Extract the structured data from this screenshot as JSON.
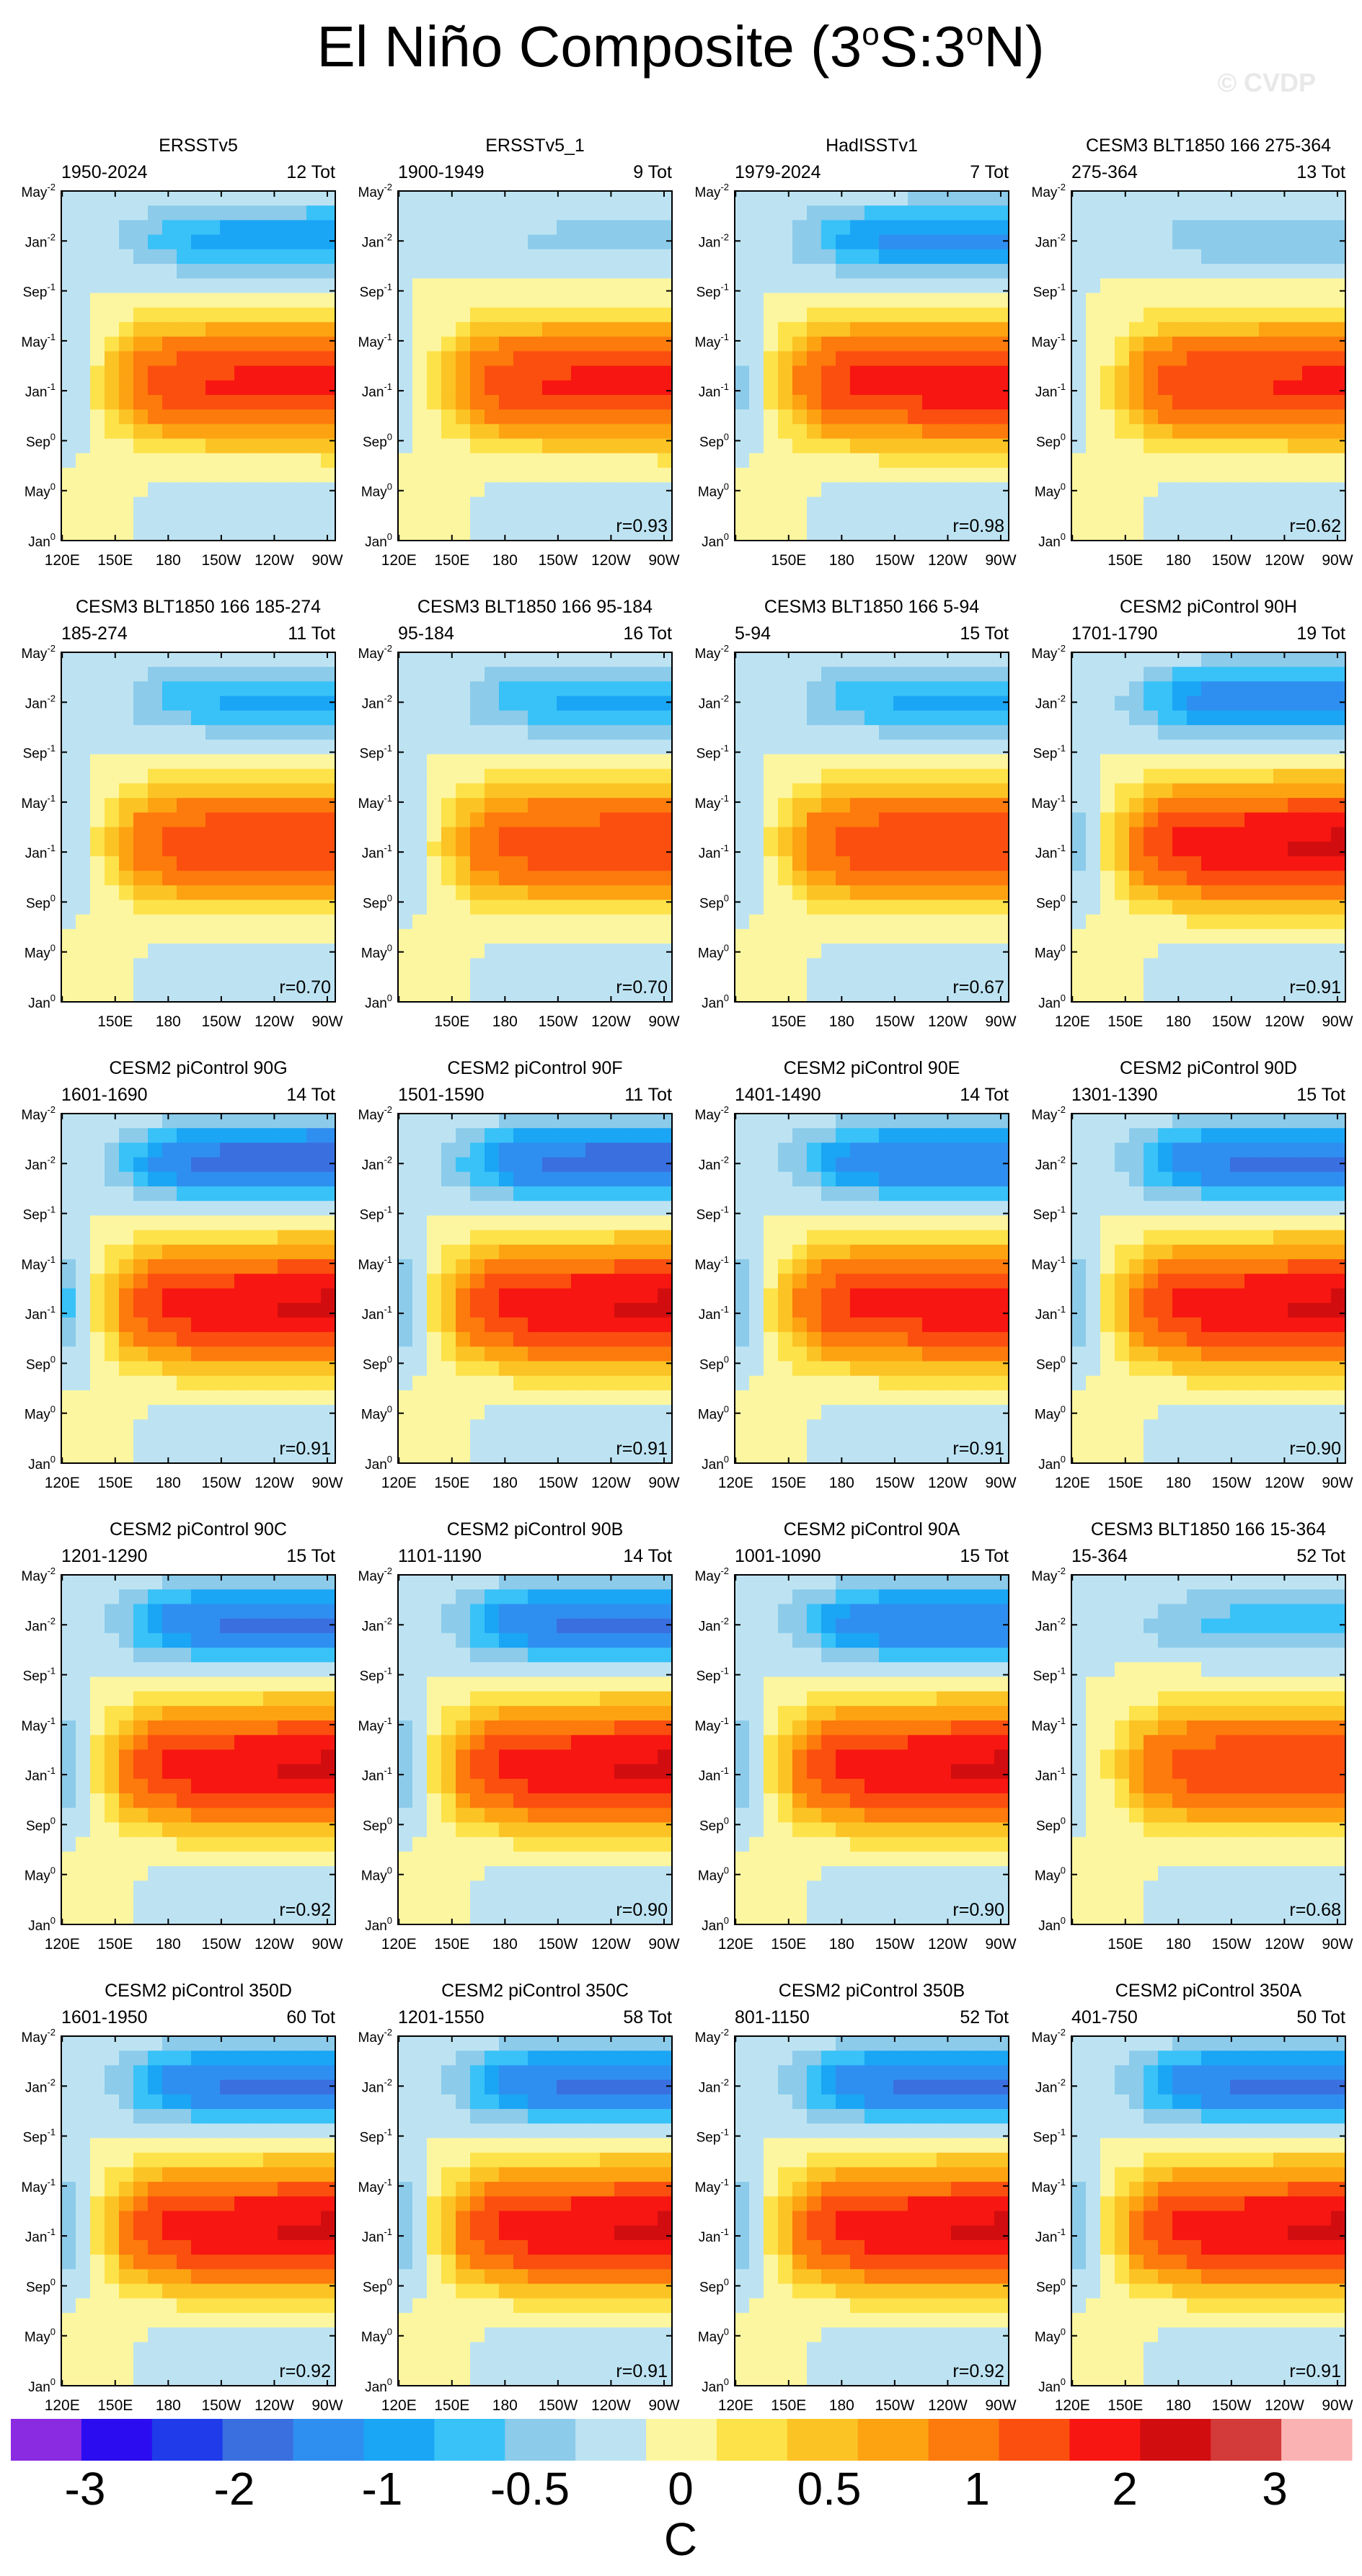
{
  "figure": {
    "title_main": "El Niño Composite (3",
    "title_s": "S:3",
    "title_n": "N)",
    "title_deg": "o",
    "watermark": "© CVDP"
  },
  "axes": {
    "y_ticks": [
      {
        "base": "May",
        "sup": "-2"
      },
      {
        "base": "Jan",
        "sup": "-2"
      },
      {
        "base": "Sep",
        "sup": "-1"
      },
      {
        "base": "May",
        "sup": "-1"
      },
      {
        "base": "Jan",
        "sup": "-1"
      },
      {
        "base": "Sep",
        "sup": "0"
      },
      {
        "base": "May",
        "sup": "0"
      },
      {
        "base": "Jan",
        "sup": "0"
      }
    ],
    "x_ticks": [
      "120E",
      "150E",
      "180",
      "150W",
      "120W",
      "90W"
    ]
  },
  "colorbar": {
    "colors": [
      "#8a2be2",
      "#2b0cf0",
      "#1f3bea",
      "#3a6fe0",
      "#2f8ff0",
      "#1aa6f5",
      "#38c2f8",
      "#8ccbea",
      "#bde3f2",
      "#fdf6a0",
      "#fde24a",
      "#fcc324",
      "#fda312",
      "#fd7a0c",
      "#fb4f0f",
      "#f71611",
      "#d20d10",
      "#d33a3a",
      "#fbb2b2"
    ],
    "labels": [
      "-3",
      "-2",
      "-1",
      "-0.5",
      "0",
      "0.5",
      "1",
      "2",
      "3"
    ],
    "unit": "C"
  },
  "chart_data": {
    "type": "heatmap",
    "title": "El Niño Composite (3°S:3°N)",
    "color_levels": [
      -3,
      -2.5,
      -2,
      -1.5,
      -1,
      -0.75,
      -0.5,
      -0.25,
      0,
      0.25,
      0.5,
      0.75,
      1,
      1.5,
      2,
      2.5,
      3
    ],
    "panels": [
      {
        "name": "ERSSTv5",
        "years": "1950-2024",
        "count": "12 Tot",
        "r": "",
        "xticks": true,
        "peak_warm": 2.2,
        "peak_cold": -0.9
      },
      {
        "name": "ERSSTv5_1",
        "years": "1900-1949",
        "count": "9 Tot",
        "r": "r=0.93",
        "xticks": true,
        "peak_warm": 2.2,
        "peak_cold": -0.3
      },
      {
        "name": "HadISSTv1",
        "years": "1979-2024",
        "count": "7 Tot",
        "r": "r=0.98",
        "xticks": false,
        "peak_warm": 2.4,
        "peak_cold": -1.1
      },
      {
        "name": "CESM3 BLT1850 166 275-364",
        "years": "275-364",
        "count": "13 Tot",
        "r": "r=0.62",
        "xticks": false,
        "peak_warm": 2.1,
        "peak_cold": -0.4
      },
      {
        "name": "CESM3 BLT1850 166 185-274",
        "years": "185-274",
        "count": "11 Tot",
        "r": "r=0.70",
        "xticks": false,
        "peak_warm": 2.0,
        "peak_cold": -0.8
      },
      {
        "name": "CESM3 BLT1850 166 95-184",
        "years": "95-184",
        "count": "16 Tot",
        "r": "r=0.70",
        "xticks": false,
        "peak_warm": 1.9,
        "peak_cold": -0.8
      },
      {
        "name": "CESM3 BLT1850 166 5-94",
        "years": "5-94",
        "count": "15 Tot",
        "r": "r=0.67",
        "xticks": false,
        "peak_warm": 2.0,
        "peak_cold": -0.8
      },
      {
        "name": "CESM2 piControl 90H",
        "years": "1701-1790",
        "count": "19 Tot",
        "r": "r=0.91",
        "xticks": true,
        "peak_warm": 2.6,
        "peak_cold": -1.3
      },
      {
        "name": "CESM2 piControl 90G",
        "years": "1601-1690",
        "count": "14 Tot",
        "r": "r=0.91",
        "xticks": true,
        "peak_warm": 2.6,
        "peak_cold": -1.8
      },
      {
        "name": "CESM2 piControl 90F",
        "years": "1501-1590",
        "count": "11 Tot",
        "r": "r=0.91",
        "xticks": true,
        "peak_warm": 2.6,
        "peak_cold": -1.7
      },
      {
        "name": "CESM2 piControl 90E",
        "years": "1401-1490",
        "count": "14 Tot",
        "r": "r=0.91",
        "xticks": true,
        "peak_warm": 2.4,
        "peak_cold": -1.5
      },
      {
        "name": "CESM2 piControl 90D",
        "years": "1301-1390",
        "count": "15 Tot",
        "r": "r=0.90",
        "xticks": true,
        "peak_warm": 2.6,
        "peak_cold": -1.6
      },
      {
        "name": "CESM2 piControl 90C",
        "years": "1201-1290",
        "count": "15 Tot",
        "r": "r=0.92",
        "xticks": true,
        "peak_warm": 2.6,
        "peak_cold": -1.6
      },
      {
        "name": "CESM2 piControl 90B",
        "years": "1101-1190",
        "count": "14 Tot",
        "r": "r=0.90",
        "xticks": true,
        "peak_warm": 2.6,
        "peak_cold": -1.6
      },
      {
        "name": "CESM2 piControl 90A",
        "years": "1001-1090",
        "count": "15 Tot",
        "r": "r=0.90",
        "xticks": true,
        "peak_warm": 2.6,
        "peak_cold": -1.5
      },
      {
        "name": "CESM3 BLT1850 166 15-364",
        "years": "15-364",
        "count": "52 Tot",
        "r": "r=0.68",
        "xticks": false,
        "peak_warm": 2.0,
        "peak_cold": -0.6
      },
      {
        "name": "CESM2 piControl 350D",
        "years": "1601-1950",
        "count": "60 Tot",
        "r": "r=0.92",
        "xticks": true,
        "peak_warm": 2.6,
        "peak_cold": -1.6
      },
      {
        "name": "CESM2 piControl 350C",
        "years": "1201-1550",
        "count": "58 Tot",
        "r": "r=0.91",
        "xticks": true,
        "peak_warm": 2.6,
        "peak_cold": -1.6
      },
      {
        "name": "CESM2 piControl 350B",
        "years": "801-1150",
        "count": "52 Tot",
        "r": "r=0.92",
        "xticks": true,
        "peak_warm": 2.6,
        "peak_cold": -1.6
      },
      {
        "name": "CESM2 piControl 350A",
        "years": "401-750",
        "count": "50 Tot",
        "r": "r=0.91",
        "xticks": true,
        "peak_warm": 2.6,
        "peak_cold": -1.6
      }
    ]
  }
}
